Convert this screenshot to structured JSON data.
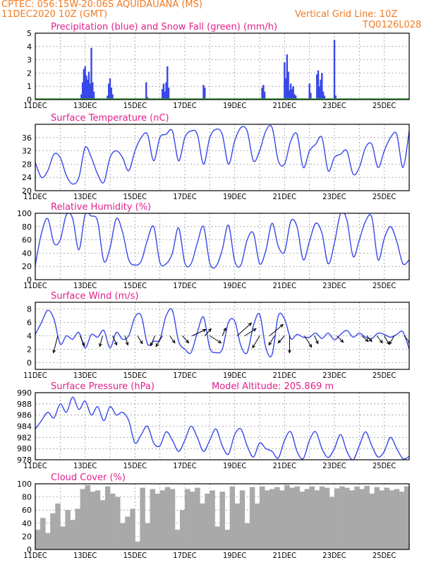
{
  "header": {
    "line1": "CPTEC:   056:15W-20:06S   AQUIDAUANA (MS)",
    "line2_left": "11DEC2020 10Z (GMT)",
    "line2_right": "Vertical Grid Line: 10Z",
    "line3_right": "TQ0126L028"
  },
  "x_tick_labels": [
    "11DEC",
    "13DEC",
    "15DEC",
    "17DEC",
    "19DEC",
    "21DEC",
    "23DEC",
    "25DEC"
  ],
  "colors": {
    "line": "#3848e8",
    "snow": "#2faa2f",
    "cloud": "#a9a9a9",
    "title": "#e0208c",
    "header": "#f07a22"
  },
  "chart_data": [
    {
      "name": "precip",
      "type": "bar",
      "title": "Precipitation (blue) and Snow Fall (green) (mm/h)",
      "ylim": [
        0,
        5
      ],
      "yticks": [
        0,
        1,
        2,
        3,
        4,
        5
      ],
      "series": [
        {
          "name": "precipitation",
          "values": [
            [
              1.85,
              0.4
            ],
            [
              1.9,
              1.3
            ],
            [
              1.95,
              2.3
            ],
            [
              2.0,
              2.5
            ],
            [
              2.05,
              1.8
            ],
            [
              2.1,
              1.5
            ],
            [
              2.15,
              2.1
            ],
            [
              2.2,
              1.2
            ],
            [
              2.25,
              3.9
            ],
            [
              2.3,
              1.3
            ],
            [
              2.35,
              0.6
            ],
            [
              2.9,
              0.3
            ],
            [
              2.95,
              1.2
            ],
            [
              3.0,
              1.6
            ],
            [
              3.05,
              0.9
            ],
            [
              3.1,
              0.4
            ],
            [
              4.45,
              1.3
            ],
            [
              4.5,
              0.2
            ],
            [
              5.1,
              0.8
            ],
            [
              5.15,
              1.2
            ],
            [
              5.2,
              0.6
            ],
            [
              5.25,
              1.3
            ],
            [
              5.3,
              2.5
            ],
            [
              5.35,
              0.9
            ],
            [
              6.75,
              1.1
            ],
            [
              6.8,
              0.9
            ],
            [
              9.1,
              0.9
            ],
            [
              9.15,
              1.1
            ],
            [
              9.2,
              0.6
            ],
            [
              10.0,
              2.8
            ],
            [
              10.05,
              1.6
            ],
            [
              10.1,
              3.4
            ],
            [
              10.15,
              2.1
            ],
            [
              10.2,
              0.7
            ],
            [
              10.25,
              1.2
            ],
            [
              10.3,
              0.8
            ],
            [
              10.35,
              1.0
            ],
            [
              10.4,
              0.4
            ],
            [
              10.45,
              0.3
            ],
            [
              11.0,
              1.2
            ],
            [
              11.05,
              0.5
            ],
            [
              11.3,
              1.9
            ],
            [
              11.35,
              2.2
            ],
            [
              11.4,
              1.0
            ],
            [
              11.45,
              1.5
            ],
            [
              11.5,
              2.0
            ],
            [
              11.55,
              0.6
            ],
            [
              11.6,
              0.3
            ],
            [
              12.0,
              4.5
            ],
            [
              12.05,
              0.3
            ]
          ]
        },
        {
          "name": "snow",
          "values": []
        }
      ]
    },
    {
      "name": "temperature",
      "type": "line",
      "title": "Surface Temperature (nC)",
      "ylim": [
        20,
        40
      ],
      "yticks": [
        20,
        24,
        28,
        32,
        36
      ],
      "x": [
        0.0,
        0.25,
        0.5,
        0.75,
        1.0,
        1.25,
        1.5,
        1.75,
        2.0,
        2.25,
        2.5,
        2.75,
        3.0,
        3.25,
        3.5,
        3.75,
        4.0,
        4.25,
        4.5,
        4.75,
        5.0,
        5.25,
        5.5,
        5.75,
        6.0,
        6.25,
        6.5,
        6.75,
        7.0,
        7.25,
        7.5,
        7.75,
        8.0,
        8.25,
        8.5,
        8.75,
        9.0,
        9.25,
        9.5,
        9.75,
        10.0,
        10.25,
        10.5,
        10.75,
        11.0,
        11.25,
        11.5,
        11.75,
        12.0,
        12.25,
        12.5,
        12.75,
        13.0,
        13.25,
        13.5,
        13.75,
        14.0,
        14.25,
        14.5,
        14.75,
        15.0
      ],
      "series": [
        {
          "values": [
            28.5,
            24,
            26,
            31,
            30,
            24.5,
            22,
            24,
            33,
            30,
            25,
            22.5,
            30,
            32,
            30,
            26,
            32,
            36,
            37,
            29,
            36,
            37,
            38,
            29,
            36,
            38,
            37,
            28,
            36,
            38.5,
            37,
            28,
            35,
            39,
            38,
            29,
            32,
            38,
            39,
            29,
            28,
            35,
            37,
            27,
            32,
            34,
            36,
            26,
            30,
            31,
            32,
            25,
            27,
            33,
            34,
            27,
            32,
            36,
            37,
            27,
            38
          ]
        }
      ]
    },
    {
      "name": "humidity",
      "type": "line",
      "title": "Relative Humidity (%)",
      "ylim": [
        0,
        100
      ],
      "yticks": [
        0,
        20,
        40,
        60,
        80,
        100
      ],
      "x": [
        0.0,
        0.25,
        0.5,
        0.75,
        1.0,
        1.25,
        1.5,
        1.75,
        2.0,
        2.25,
        2.5,
        2.75,
        3.0,
        3.25,
        3.5,
        3.75,
        4.0,
        4.25,
        4.5,
        4.75,
        5.0,
        5.25,
        5.5,
        5.75,
        6.0,
        6.25,
        6.5,
        6.75,
        7.0,
        7.25,
        7.5,
        7.75,
        8.0,
        8.25,
        8.5,
        8.75,
        9.0,
        9.25,
        9.5,
        9.75,
        10.0,
        10.25,
        10.5,
        10.75,
        11.0,
        11.25,
        11.5,
        11.75,
        12.0,
        12.25,
        12.5,
        12.75,
        13.0,
        13.25,
        13.5,
        13.75,
        14.0,
        14.25,
        14.5,
        14.75,
        15.0
      ],
      "series": [
        {
          "values": [
            22,
            70,
            92,
            55,
            60,
            98,
            92,
            45,
            98,
            96,
            88,
            28,
            48,
            92,
            72,
            30,
            22,
            28,
            60,
            80,
            26,
            24,
            40,
            78,
            25,
            24,
            55,
            80,
            25,
            20,
            45,
            82,
            28,
            22,
            60,
            70,
            24,
            44,
            85,
            50,
            42,
            88,
            80,
            30,
            58,
            85,
            70,
            24,
            55,
            100,
            90,
            35,
            60,
            88,
            94,
            30,
            62,
            80,
            58,
            24,
            30
          ]
        }
      ]
    },
    {
      "name": "wind",
      "type": "line",
      "title": "Surface Wind (m/s)",
      "ylim": [
        -1,
        9
      ],
      "yticks": [
        0,
        2,
        4,
        6,
        8
      ],
      "x": [
        0.0,
        0.25,
        0.5,
        0.75,
        1.0,
        1.25,
        1.5,
        1.75,
        2.0,
        2.25,
        2.5,
        2.75,
        3.0,
        3.25,
        3.5,
        3.75,
        4.0,
        4.25,
        4.5,
        4.75,
        5.0,
        5.25,
        5.5,
        5.75,
        6.0,
        6.25,
        6.5,
        6.75,
        7.0,
        7.25,
        7.5,
        7.75,
        8.0,
        8.25,
        8.5,
        8.75,
        9.0,
        9.25,
        9.5,
        9.75,
        10.0,
        10.25,
        10.5,
        10.75,
        11.0,
        11.25,
        11.5,
        11.75,
        12.0,
        12.25,
        12.5,
        12.75,
        13.0,
        13.25,
        13.5,
        13.75,
        14.0,
        14.25,
        14.5,
        14.75,
        15.0
      ],
      "series": [
        {
          "values": [
            4.2,
            6,
            7.8,
            6.5,
            2.8,
            4,
            3.5,
            4.5,
            2.2,
            4.2,
            3.8,
            4.8,
            2.2,
            4.5,
            3.5,
            4,
            6.8,
            7,
            2.8,
            3.2,
            3.5,
            7,
            7.8,
            3.2,
            2,
            1.5,
            4.5,
            6.8,
            2.2,
            1.5,
            2,
            6,
            6.2,
            2.5,
            1.5,
            5.5,
            7.2,
            2.2,
            1.2,
            7,
            6.5,
            3.6,
            4.2,
            3.8,
            3.8,
            4.4,
            3.6,
            4.4,
            3.4,
            4.2,
            4.8,
            3.8,
            4.4,
            3.8,
            3.6,
            4.4,
            4.2,
            3.8,
            4.2,
            4.6,
            2
          ]
        }
      ],
      "vectors": [
        [
          0.9,
          -0.6,
          -2.4
        ],
        [
          1.8,
          0.6,
          -1.4
        ],
        [
          2.7,
          -0.4,
          -1.5
        ],
        [
          3.1,
          0.6,
          -1.3
        ],
        [
          3.6,
          0.4,
          -1.3
        ],
        [
          4.1,
          0.7,
          -1.1
        ],
        [
          4.8,
          -0.6,
          -1.4
        ],
        [
          5.1,
          -0.9,
          -1.5
        ],
        [
          5.4,
          0.7,
          -1.0
        ],
        [
          5.9,
          0.9,
          -1.0
        ],
        [
          6.3,
          1.9,
          0.9
        ],
        [
          6.8,
          0.9,
          1.0
        ],
        [
          7.0,
          1.6,
          -1.0
        ],
        [
          7.5,
          0.5,
          1.1
        ],
        [
          8.1,
          2.0,
          1.8
        ],
        [
          8.4,
          1.6,
          1.0
        ],
        [
          9.0,
          -1.0,
          -1.7
        ],
        [
          9.4,
          1.9,
          1.6
        ],
        [
          9.6,
          -0.8,
          -1.3
        ],
        [
          10.0,
          -0.9,
          -1.0
        ],
        [
          10.2,
          0.0,
          -2.4
        ],
        [
          10.8,
          1.0,
          -1.6
        ],
        [
          11.2,
          0.5,
          -1.1
        ],
        [
          12.1,
          0.9,
          -0.9
        ],
        [
          13.1,
          0.9,
          -0.8
        ],
        [
          13.3,
          0.7,
          -0.8
        ],
        [
          13.7,
          0.8,
          -1.0
        ],
        [
          14.0,
          0.7,
          -1.2
        ],
        [
          14.4,
          -0.7,
          -1.2
        ],
        [
          14.8,
          0.9,
          -1.1
        ]
      ]
    },
    {
      "name": "pressure",
      "type": "line",
      "title": "Surface Pressure (hPa)",
      "annotation": "Model Altitude: 205.869 m",
      "ylim": [
        978,
        990
      ],
      "yticks": [
        978,
        980,
        982,
        984,
        986,
        988,
        990
      ],
      "x": [
        0.0,
        0.25,
        0.5,
        0.75,
        1.0,
        1.25,
        1.5,
        1.75,
        2.0,
        2.25,
        2.5,
        2.75,
        3.0,
        3.25,
        3.5,
        3.75,
        4.0,
        4.25,
        4.5,
        4.75,
        5.0,
        5.25,
        5.5,
        5.75,
        6.0,
        6.25,
        6.5,
        6.75,
        7.0,
        7.25,
        7.5,
        7.75,
        8.0,
        8.25,
        8.5,
        8.75,
        9.0,
        9.25,
        9.5,
        9.75,
        10.0,
        10.25,
        10.5,
        10.75,
        11.0,
        11.25,
        11.5,
        11.75,
        12.0,
        12.25,
        12.5,
        12.75,
        13.0,
        13.25,
        13.5,
        13.75,
        14.0,
        14.25,
        14.5,
        14.75,
        15.0
      ],
      "series": [
        {
          "values": [
            983.5,
            985,
            986.5,
            985.5,
            988,
            986.5,
            989.2,
            987,
            988.5,
            986,
            987.5,
            985,
            987.5,
            986,
            986.5,
            985,
            981,
            982.5,
            984,
            981,
            980.5,
            983,
            981.5,
            979.5,
            981.5,
            984,
            982,
            979.5,
            981.5,
            983.5,
            980.5,
            979,
            982.5,
            983.5,
            980.5,
            978.5,
            981,
            980,
            979.5,
            978.3,
            981.5,
            983,
            979.5,
            978.2,
            981.5,
            983,
            980,
            978.4,
            980,
            982.5,
            979.5,
            978,
            980.5,
            983,
            980.5,
            978.5,
            979.5,
            982,
            980,
            978.2,
            978.6
          ]
        }
      ]
    },
    {
      "name": "cloud",
      "type": "bar",
      "title": "Cloud Cover (%)",
      "ylim": [
        0,
        100
      ],
      "yticks": [
        0,
        20,
        40,
        60,
        80,
        100
      ],
      "x": [
        0.1,
        0.3,
        0.5,
        0.7,
        0.9,
        1.1,
        1.3,
        1.5,
        1.7,
        1.9,
        2.1,
        2.3,
        2.5,
        2.7,
        2.9,
        3.1,
        3.3,
        3.5,
        3.7,
        3.9,
        4.1,
        4.3,
        4.5,
        4.7,
        4.9,
        5.1,
        5.3,
        5.5,
        5.7,
        5.9,
        6.1,
        6.3,
        6.5,
        6.7,
        6.9,
        7.1,
        7.3,
        7.5,
        7.7,
        7.9,
        8.1,
        8.3,
        8.5,
        8.7,
        8.9,
        9.1,
        9.3,
        9.5,
        9.7,
        9.9,
        10.1,
        10.3,
        10.5,
        10.7,
        10.9,
        11.1,
        11.3,
        11.5,
        11.7,
        11.9,
        12.1,
        12.3,
        12.5,
        12.7,
        12.9,
        13.1,
        13.3,
        13.5,
        13.7,
        13.9,
        14.1,
        14.3,
        14.5,
        14.7,
        14.9
      ],
      "series": [
        {
          "values": [
            30,
            48,
            25,
            55,
            70,
            35,
            60,
            45,
            62,
            92,
            98,
            88,
            90,
            75,
            96,
            85,
            80,
            40,
            50,
            62,
            12,
            94,
            40,
            92,
            85,
            90,
            95,
            92,
            30,
            60,
            92,
            88,
            94,
            70,
            85,
            90,
            35,
            88,
            30,
            96,
            70,
            90,
            40,
            95,
            70,
            96,
            90,
            92,
            95,
            90,
            98,
            94,
            96,
            88,
            92,
            96,
            90,
            96,
            94,
            80,
            93,
            96,
            94,
            90,
            96,
            92,
            97,
            85,
            95,
            90,
            94,
            90,
            92,
            88,
            96
          ]
        }
      ]
    }
  ]
}
